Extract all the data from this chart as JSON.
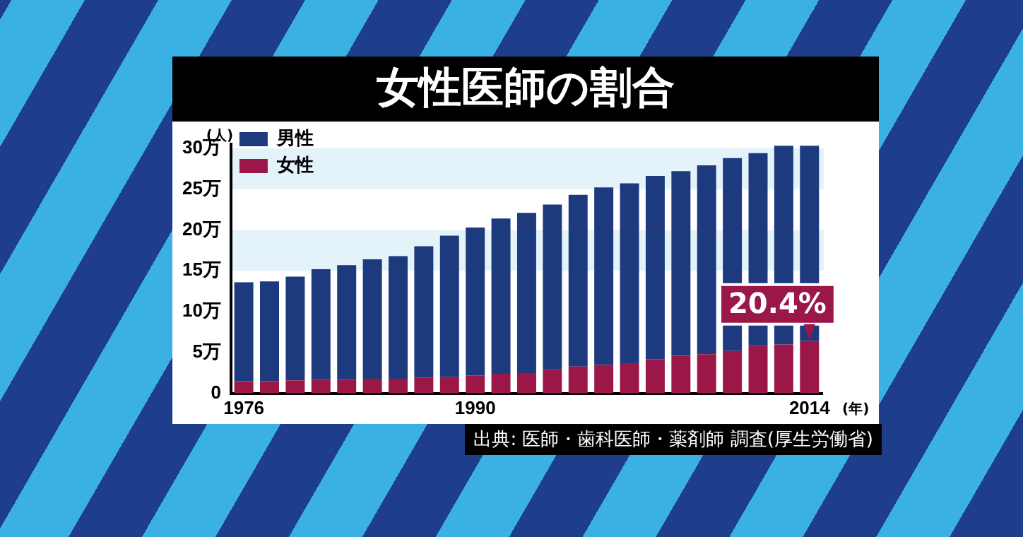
{
  "chart_data": {
    "type": "bar",
    "title": "女性医師の割合",
    "ylabel": "(人)",
    "xlabel": "(年)",
    "categories": [
      "1976",
      null,
      null,
      null,
      null,
      null,
      null,
      null,
      null,
      "1990",
      null,
      null,
      null,
      null,
      null,
      null,
      null,
      null,
      null,
      null,
      null,
      null,
      "2014"
    ],
    "series": [
      {
        "name": "女性",
        "color": "#9a1748",
        "values": [
          1.5,
          1.5,
          1.6,
          1.7,
          1.7,
          1.8,
          1.8,
          1.9,
          2.0,
          2.2,
          2.4,
          2.5,
          2.9,
          3.3,
          3.5,
          3.7,
          4.2,
          4.6,
          4.8,
          5.2,
          5.8,
          6.0,
          6.4
        ]
      },
      {
        "name": "男性",
        "color": "#1d3a7e",
        "values": [
          12.1,
          12.2,
          12.7,
          13.5,
          14.0,
          14.6,
          15.0,
          16.1,
          17.3,
          18.1,
          19.0,
          19.6,
          20.2,
          21.0,
          21.7,
          22.0,
          22.4,
          22.6,
          23.1,
          23.6,
          23.6,
          24.3,
          23.9
        ]
      }
    ],
    "stacked": true,
    "ylim": [
      0,
      30.5
    ],
    "yticks": [
      0,
      {
        "value": 5,
        "label": "5万"
      },
      {
        "value": 10,
        "label": "10万"
      },
      {
        "value": 15,
        "label": "15万"
      },
      {
        "value": 20,
        "label": "20万"
      },
      {
        "value": 25,
        "label": "25万"
      },
      {
        "value": 30,
        "label": "30万"
      }
    ],
    "bands": [
      {
        "axis": "y",
        "from": 15,
        "to": 20,
        "color": "#e4f3fa"
      },
      {
        "axis": "y",
        "from": 25,
        "to": 30,
        "color": "#e4f3fa"
      }
    ],
    "grid": false,
    "legend": "top left",
    "annotations": [
      {
        "text": "20.4%",
        "x": "2014",
        "y": 6.4
      },
      "出典: 医師・歯科医師・薬剤師 調査(厚生労働省)"
    ]
  }
}
